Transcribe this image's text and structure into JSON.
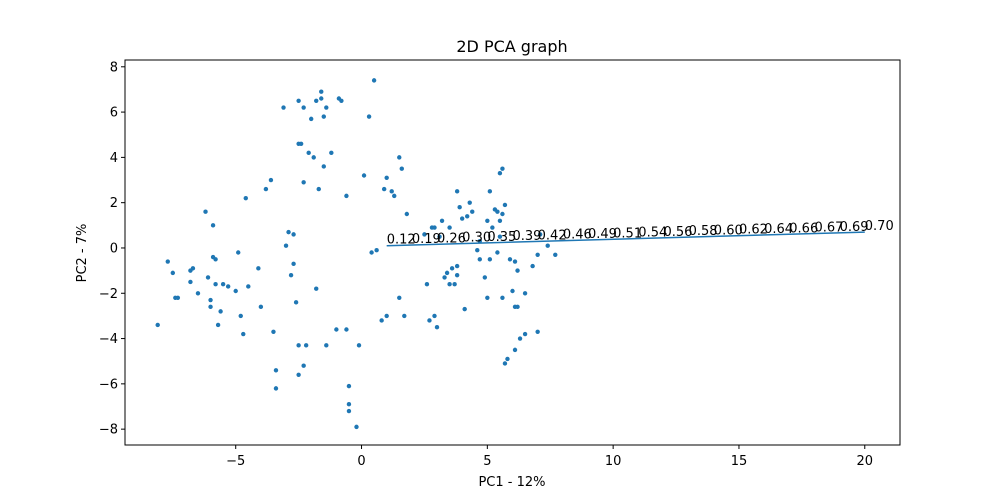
{
  "chart_data": {
    "type": "scatter",
    "title": "2D PCA graph",
    "xlabel": "PC1 - 12%",
    "ylabel": "PC2 - 7%",
    "xlim": [
      -9.4,
      21.4
    ],
    "ylim": [
      -8.7,
      8.3
    ],
    "xticks": [
      -5,
      0,
      5,
      10,
      15,
      20
    ],
    "yticks": [
      -8,
      -6,
      -4,
      -2,
      0,
      2,
      4,
      6,
      8
    ],
    "grid": false,
    "colors": {
      "points": "#1f77b4",
      "line": "#1f77b4"
    },
    "series": [
      {
        "type": "scatter",
        "points": [
          [
            -8.1,
            -3.4
          ],
          [
            -7.7,
            -0.6
          ],
          [
            -7.5,
            -1.1
          ],
          [
            -7.4,
            -2.2
          ],
          [
            -7.3,
            -2.2
          ],
          [
            -6.8,
            -1.0
          ],
          [
            -6.7,
            -0.9
          ],
          [
            -6.8,
            -1.5
          ],
          [
            -6.5,
            -2.0
          ],
          [
            -6.2,
            1.6
          ],
          [
            -6.1,
            -1.3
          ],
          [
            -6.0,
            -2.6
          ],
          [
            -6.0,
            -2.3
          ],
          [
            -5.9,
            -0.4
          ],
          [
            -5.9,
            1.0
          ],
          [
            -5.8,
            -0.5
          ],
          [
            -5.8,
            -1.6
          ],
          [
            -5.7,
            -3.4
          ],
          [
            -5.6,
            -2.8
          ],
          [
            -5.5,
            -1.6
          ],
          [
            -5.3,
            -1.7
          ],
          [
            -5.0,
            -1.9
          ],
          [
            -4.9,
            -0.2
          ],
          [
            -4.8,
            -3.0
          ],
          [
            -4.7,
            -3.8
          ],
          [
            -4.5,
            -1.7
          ],
          [
            -4.6,
            2.2
          ],
          [
            -4.1,
            -0.9
          ],
          [
            -4.0,
            -2.6
          ],
          [
            -3.8,
            2.6
          ],
          [
            -3.6,
            3.0
          ],
          [
            -3.5,
            -3.7
          ],
          [
            -3.4,
            -5.4
          ],
          [
            -3.4,
            -6.2
          ],
          [
            -3.1,
            6.2
          ],
          [
            -3.0,
            0.1
          ],
          [
            -2.9,
            0.7
          ],
          [
            -2.8,
            -1.2
          ],
          [
            -2.7,
            0.6
          ],
          [
            -2.7,
            -0.7
          ],
          [
            -2.6,
            -2.4
          ],
          [
            -2.5,
            -5.6
          ],
          [
            -2.5,
            -4.3
          ],
          [
            -2.5,
            6.5
          ],
          [
            -2.5,
            4.6
          ],
          [
            -2.4,
            4.6
          ],
          [
            -2.3,
            -5.2
          ],
          [
            -2.3,
            2.9
          ],
          [
            -2.2,
            -4.3
          ],
          [
            -2.3,
            6.2
          ],
          [
            -2.1,
            4.2
          ],
          [
            -2.0,
            5.7
          ],
          [
            -1.9,
            4.0
          ],
          [
            -1.8,
            6.5
          ],
          [
            -1.8,
            -1.8
          ],
          [
            -1.7,
            2.6
          ],
          [
            -1.6,
            6.6
          ],
          [
            -1.6,
            6.9
          ],
          [
            -1.5,
            3.6
          ],
          [
            -1.5,
            5.8
          ],
          [
            -1.4,
            6.2
          ],
          [
            -1.4,
            -4.3
          ],
          [
            -1.2,
            4.2
          ],
          [
            -1.0,
            -3.6
          ],
          [
            -0.9,
            6.6
          ],
          [
            -0.8,
            6.5
          ],
          [
            -0.6,
            2.3
          ],
          [
            -0.6,
            -3.6
          ],
          [
            -0.5,
            -6.1
          ],
          [
            -0.5,
            -6.9
          ],
          [
            -0.5,
            -7.2
          ],
          [
            -0.2,
            -7.9
          ],
          [
            -0.1,
            -4.3
          ],
          [
            0.1,
            3.2
          ],
          [
            0.3,
            5.8
          ],
          [
            0.4,
            -0.2
          ],
          [
            0.5,
            7.4
          ],
          [
            0.6,
            -0.1
          ],
          [
            0.8,
            -3.2
          ],
          [
            0.9,
            2.6
          ],
          [
            1.0,
            -3.0
          ],
          [
            1.0,
            3.1
          ],
          [
            1.2,
            2.5
          ],
          [
            1.3,
            2.3
          ],
          [
            1.5,
            -2.2
          ],
          [
            1.5,
            4.0
          ],
          [
            1.6,
            3.5
          ],
          [
            1.7,
            -3.0
          ],
          [
            1.8,
            1.5
          ],
          [
            2.5,
            0.6
          ],
          [
            2.6,
            -1.6
          ],
          [
            2.7,
            -3.2
          ],
          [
            2.8,
            0.9
          ],
          [
            2.9,
            -3.0
          ],
          [
            2.9,
            0.9
          ],
          [
            3.0,
            -3.5
          ],
          [
            3.1,
            0.5
          ],
          [
            3.2,
            1.2
          ],
          [
            3.3,
            -1.3
          ],
          [
            3.4,
            -1.1
          ],
          [
            3.5,
            -1.6
          ],
          [
            3.5,
            0.9
          ],
          [
            3.6,
            -0.9
          ],
          [
            3.7,
            -1.6
          ],
          [
            3.8,
            2.5
          ],
          [
            3.8,
            -0.8
          ],
          [
            3.8,
            -1.2
          ],
          [
            3.9,
            1.8
          ],
          [
            4.0,
            1.3
          ],
          [
            4.1,
            -2.7
          ],
          [
            4.2,
            1.4
          ],
          [
            4.3,
            2.0
          ],
          [
            4.4,
            1.6
          ],
          [
            4.6,
            -0.1
          ],
          [
            4.7,
            -0.5
          ],
          [
            4.7,
            0.3
          ],
          [
            4.9,
            -1.3
          ],
          [
            5.0,
            1.2
          ],
          [
            5.0,
            -2.2
          ],
          [
            5.1,
            -0.5
          ],
          [
            5.1,
            2.5
          ],
          [
            5.2,
            0.9
          ],
          [
            5.3,
            1.7
          ],
          [
            5.4,
            -0.2
          ],
          [
            5.4,
            1.6
          ],
          [
            5.5,
            3.3
          ],
          [
            5.5,
            0.5
          ],
          [
            5.5,
            1.2
          ],
          [
            5.6,
            1.5
          ],
          [
            5.6,
            -2.2
          ],
          [
            5.6,
            3.5
          ],
          [
            5.7,
            -5.1
          ],
          [
            5.7,
            1.9
          ],
          [
            5.8,
            -4.9
          ],
          [
            5.9,
            -0.5
          ],
          [
            6.0,
            -1.9
          ],
          [
            6.1,
            -0.6
          ],
          [
            6.1,
            -2.6
          ],
          [
            6.1,
            -4.5
          ],
          [
            6.2,
            -1.0
          ],
          [
            6.2,
            -2.6
          ],
          [
            6.3,
            -4.0
          ],
          [
            6.5,
            -2.0
          ],
          [
            6.5,
            -3.8
          ],
          [
            6.8,
            -0.8
          ],
          [
            7.0,
            -0.3
          ],
          [
            7.0,
            -3.7
          ],
          [
            7.1,
            0.6
          ],
          [
            7.4,
            0.1
          ],
          [
            7.7,
            -0.3
          ]
        ]
      },
      {
        "type": "line",
        "x": [
          1.0,
          20.0
        ],
        "y": [
          0.1,
          0.7
        ],
        "labels": [
          "0.12",
          "0.19",
          "0.26",
          "0.30",
          "0.35",
          "0.39",
          "0.42",
          "0.46",
          "0.49",
          "0.51",
          "0.54",
          "0.56",
          "0.58",
          "0.60",
          "0.62",
          "0.64",
          "0.66",
          "0.67",
          "0.69",
          "0.70"
        ]
      }
    ]
  }
}
